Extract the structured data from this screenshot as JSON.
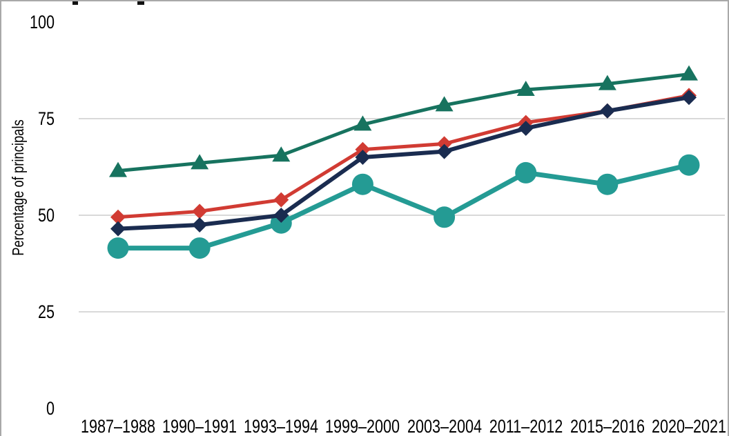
{
  "page": {
    "background": "#ffffff",
    "frame_border_color": "#a8a8a8",
    "note_title_cut_off": true
  },
  "chart_data": {
    "type": "line",
    "title": "",
    "ylabel": "Percentage of principals",
    "xlabel": "",
    "ylim": [
      0,
      100
    ],
    "grid": true,
    "gridlines": [
      25,
      50,
      75
    ],
    "gridline_color": "#d9d9d9",
    "legend_position": "none",
    "y_tick_labels": [
      "100",
      "75",
      "50",
      "25",
      "0"
    ],
    "categories": [
      "1987–1988",
      "1990–1991",
      "1993–1994",
      "1999–2000",
      "2003–2004",
      "2011–2012",
      "2015–2016",
      "2020–2021"
    ],
    "series": [
      {
        "name": "dark-green-triangle-series",
        "marker": "triangle",
        "color": "#17735F",
        "line_width": 5,
        "values": [
          61.5,
          63.5,
          65.5,
          73.5,
          78.5,
          82.5,
          84,
          86.5
        ]
      },
      {
        "name": "teal-circle-series",
        "marker": "circle",
        "color": "#249B94",
        "line_width": 7,
        "values": [
          41.5,
          41.5,
          48,
          58,
          49.5,
          61,
          58,
          63
        ]
      },
      {
        "name": "red-diamond-series",
        "marker": "diamond",
        "color": "#D13B33",
        "line_width": 5,
        "values": [
          49.5,
          51,
          54,
          67,
          68.5,
          74,
          77,
          81
        ]
      },
      {
        "name": "navy-diamond-series",
        "marker": "diamond",
        "color": "#1A2C50",
        "line_width": 6,
        "values": [
          46.5,
          47.5,
          50,
          65,
          66.5,
          72.5,
          77,
          80.5
        ]
      }
    ]
  }
}
